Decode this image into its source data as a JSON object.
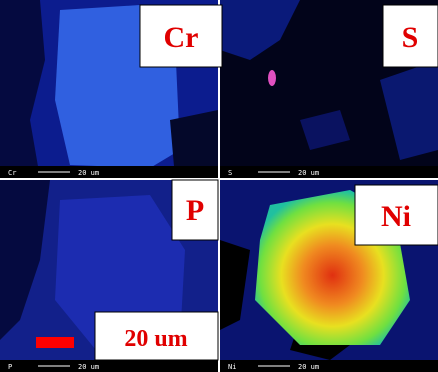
{
  "panels": [
    {
      "label": "Cr",
      "corner_label": "Cr",
      "scale_label": "20 um"
    },
    {
      "label": "S",
      "corner_label": "S",
      "scale_label": "20 um"
    },
    {
      "label": "P",
      "corner_label": "P",
      "scale_label": "20 um"
    },
    {
      "label": "Ni",
      "corner_label": "Ni",
      "scale_label": "20 um"
    }
  ],
  "scale_bar_label": "20 um"
}
